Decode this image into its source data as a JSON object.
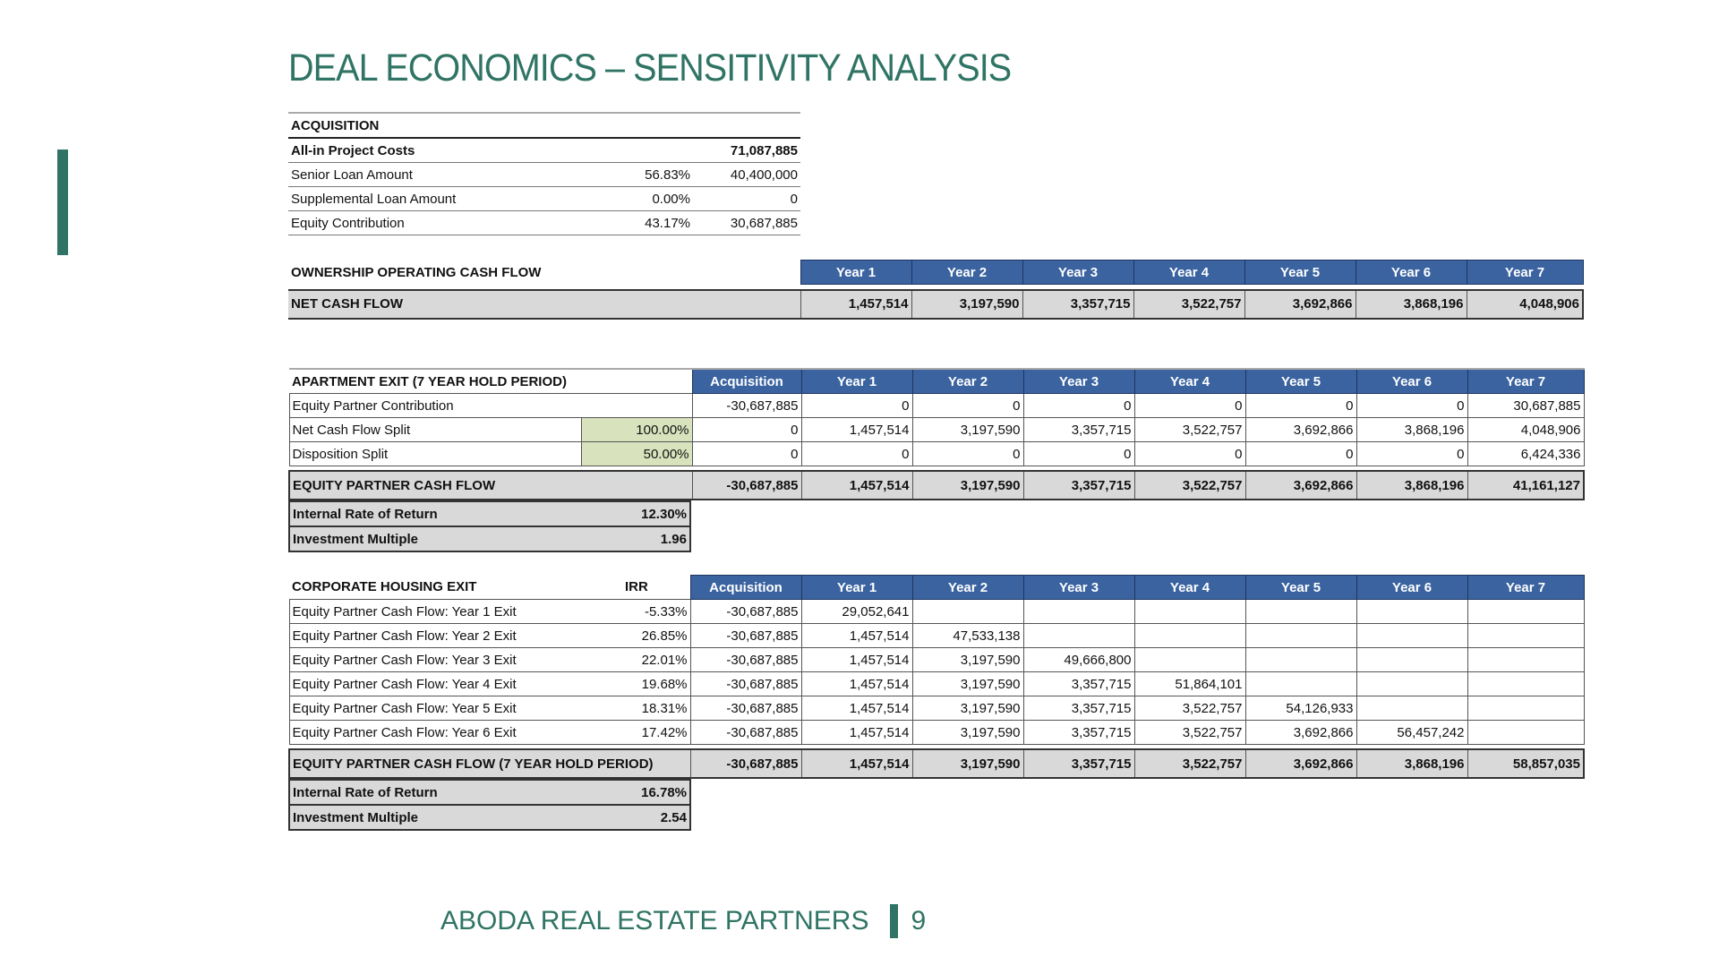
{
  "title": "DEAL ECONOMICS – SENSITIVITY ANALYSIS",
  "acquisition": {
    "heading": "ACQUISITION",
    "rows": [
      {
        "label": "All-in Project Costs",
        "pct": "",
        "value": "71,087,885",
        "bold": true
      },
      {
        "label": "Senior Loan Amount",
        "pct": "56.83%",
        "value": "40,400,000"
      },
      {
        "label": "Supplemental Loan Amount",
        "pct": "0.00%",
        "value": "0"
      },
      {
        "label": "Equity Contribution",
        "pct": "43.17%",
        "value": "30,687,885"
      }
    ]
  },
  "ownership": {
    "heading": "OWNERSHIP OPERATING CASH FLOW",
    "years": [
      "Year 1",
      "Year 2",
      "Year 3",
      "Year 4",
      "Year 5",
      "Year 6",
      "Year 7"
    ],
    "net_label": "NET CASH FLOW",
    "net_values": [
      "1,457,514",
      "3,197,590",
      "3,357,715",
      "3,522,757",
      "3,692,866",
      "3,868,196",
      "4,048,906"
    ]
  },
  "apartment": {
    "heading": "APARTMENT EXIT (7 YEAR HOLD PERIOD)",
    "columns": [
      "Acquisition",
      "Year 1",
      "Year 2",
      "Year 3",
      "Year 4",
      "Year 5",
      "Year 6",
      "Year 7"
    ],
    "rows": [
      {
        "label": "Equity Partner Contribution",
        "pct": "",
        "values": [
          "-30,687,885",
          "0",
          "0",
          "0",
          "0",
          "0",
          "0",
          "30,687,885"
        ]
      },
      {
        "label": "Net Cash Flow Split",
        "pct": "100.00%",
        "values": [
          "0",
          "1,457,514",
          "3,197,590",
          "3,357,715",
          "3,522,757",
          "3,692,866",
          "3,868,196",
          "4,048,906"
        ]
      },
      {
        "label": "Disposition Split",
        "pct": "50.00%",
        "values": [
          "0",
          "0",
          "0",
          "0",
          "0",
          "0",
          "0",
          "6,424,336"
        ]
      }
    ],
    "total_label": "EQUITY PARTNER CASH FLOW",
    "total_values": [
      "-30,687,885",
      "1,457,514",
      "3,197,590",
      "3,357,715",
      "3,522,757",
      "3,692,866",
      "3,868,196",
      "41,161,127"
    ],
    "irr_label": "Internal Rate of Return",
    "irr_value": "12.30%",
    "multiple_label": "Investment Multiple",
    "multiple_value": "1.96"
  },
  "corporate": {
    "heading": "CORPORATE HOUSING EXIT",
    "irr_heading": "IRR",
    "columns": [
      "Acquisition",
      "Year 1",
      "Year 2",
      "Year 3",
      "Year 4",
      "Year 5",
      "Year 6",
      "Year 7"
    ],
    "rows": [
      {
        "label": "Equity Partner Cash Flow: Year 1 Exit",
        "irr": "-5.33%",
        "values": [
          "-30,687,885",
          "29,052,641",
          "",
          "",
          "",
          "",
          "",
          ""
        ]
      },
      {
        "label": "Equity Partner Cash Flow: Year 2 Exit",
        "irr": "26.85%",
        "values": [
          "-30,687,885",
          "1,457,514",
          "47,533,138",
          "",
          "",
          "",
          "",
          ""
        ]
      },
      {
        "label": "Equity Partner Cash Flow: Year 3 Exit",
        "irr": "22.01%",
        "values": [
          "-30,687,885",
          "1,457,514",
          "3,197,590",
          "49,666,800",
          "",
          "",
          "",
          ""
        ]
      },
      {
        "label": "Equity Partner Cash Flow: Year 4 Exit",
        "irr": "19.68%",
        "values": [
          "-30,687,885",
          "1,457,514",
          "3,197,590",
          "3,357,715",
          "51,864,101",
          "",
          "",
          ""
        ]
      },
      {
        "label": "Equity Partner Cash Flow: Year 5 Exit",
        "irr": "18.31%",
        "values": [
          "-30,687,885",
          "1,457,514",
          "3,197,590",
          "3,357,715",
          "3,522,757",
          "54,126,933",
          "",
          ""
        ]
      },
      {
        "label": "Equity Partner Cash Flow: Year 6 Exit",
        "irr": "17.42%",
        "values": [
          "-30,687,885",
          "1,457,514",
          "3,197,590",
          "3,357,715",
          "3,522,757",
          "3,692,866",
          "56,457,242",
          ""
        ]
      }
    ],
    "total_label": "EQUITY PARTNER CASH FLOW (7 YEAR HOLD PERIOD)",
    "total_values": [
      "-30,687,885",
      "1,457,514",
      "3,197,590",
      "3,357,715",
      "3,522,757",
      "3,692,866",
      "3,868,196",
      "58,857,035"
    ],
    "irr_label": "Internal Rate of Return",
    "irr_value": "16.78%",
    "multiple_label": "Investment Multiple",
    "multiple_value": "2.54"
  },
  "footer": {
    "company": "ABODA REAL ESTATE PARTNERS",
    "page_number": "9"
  },
  "colors": {
    "brand_green": "#2f7464",
    "header_blue": "#3a63a0",
    "input_yellow": "#d8e3bd",
    "total_gray": "#d9d9d9"
  }
}
